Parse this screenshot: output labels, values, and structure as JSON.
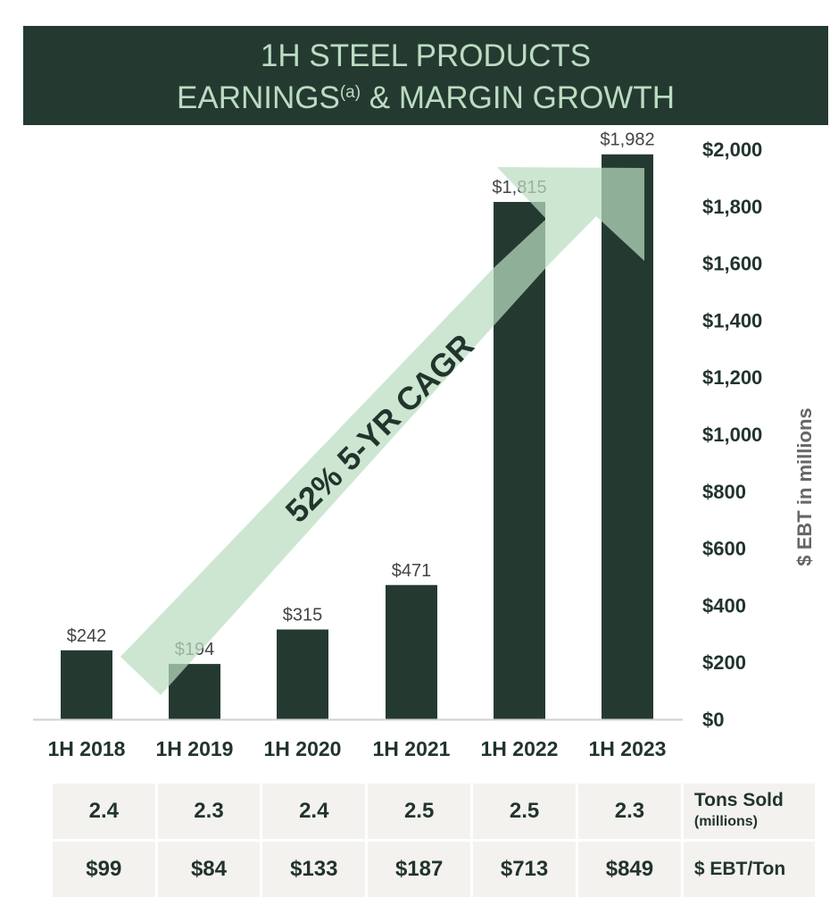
{
  "title": {
    "line1": "1H STEEL PRODUCTS",
    "line2_main": "EARNINGS",
    "line2_sup": "(a)",
    "line2_rest": " & MARGIN GROWTH"
  },
  "chart_data": {
    "type": "bar",
    "categories": [
      "1H 2018",
      "1H 2019",
      "1H 2020",
      "1H 2021",
      "1H 2022",
      "1H 2023"
    ],
    "values": [
      242,
      194,
      315,
      471,
      1815,
      1982
    ],
    "data_labels": [
      "$242",
      "$194",
      "$315",
      "$471",
      "$1,815",
      "$1,982"
    ],
    "ylabel": "$ EBT in millions",
    "ylim": [
      0,
      2000
    ],
    "yticks": [
      0,
      200,
      400,
      600,
      800,
      1000,
      1200,
      1400,
      1600,
      1800,
      2000
    ],
    "ytick_labels": [
      "$0",
      "$200",
      "$400",
      "$600",
      "$800",
      "$1,000",
      "$1,200",
      "$1,400",
      "$1,600",
      "$1,800",
      "$2,000"
    ],
    "axis_position": "right",
    "grid": false,
    "annotation": "52% 5-YR CAGR",
    "colors": {
      "bar": "#243a31",
      "arrow": "#b9dcc0",
      "label": "#444444"
    }
  },
  "table": {
    "rows": [
      {
        "label": "Tons Sold",
        "sublabel": "(millions)",
        "values": [
          "2.4",
          "2.3",
          "2.4",
          "2.5",
          "2.5",
          "2.3"
        ]
      },
      {
        "label": "$ EBT/Ton",
        "sublabel": "",
        "values": [
          "$99",
          "$84",
          "$133",
          "$187",
          "$713",
          "$849"
        ]
      }
    ]
  }
}
